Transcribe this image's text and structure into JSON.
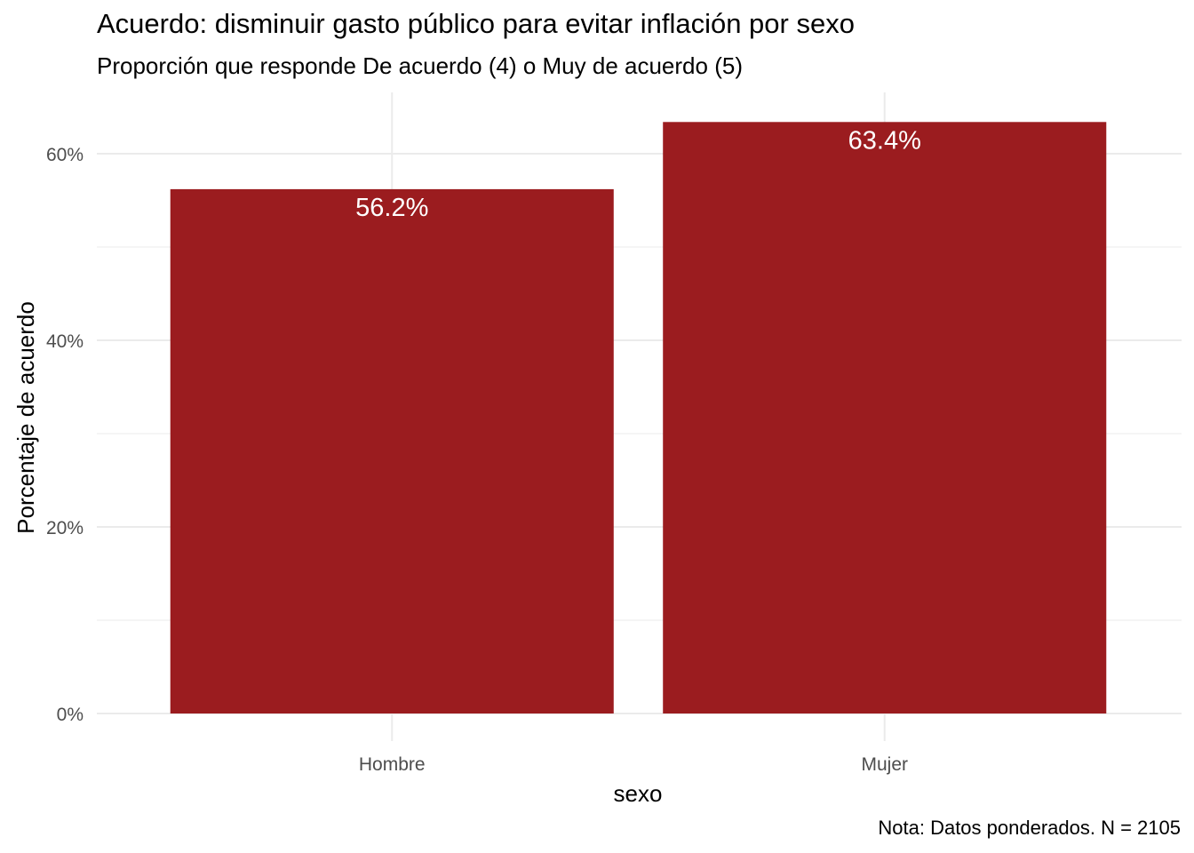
{
  "chart_data": {
    "type": "bar",
    "title": "Acuerdo: disminuir gasto público para evitar inflación por sexo",
    "subtitle": "Proporción que responde De acuerdo (4) o Muy de acuerdo (5)",
    "caption": "Nota: Datos ponderados. N = 2105",
    "xlabel": "sexo",
    "ylabel": "Porcentaje de acuerdo",
    "categories": [
      "Hombre",
      "Mujer"
    ],
    "values": [
      56.2,
      63.4
    ],
    "data_labels": [
      "56.2%",
      "63.4%"
    ],
    "yticks": [
      0,
      20,
      40,
      60
    ],
    "ytick_labels": [
      "0%",
      "20%",
      "40%",
      "60%"
    ],
    "ylim": [
      0,
      66.5
    ],
    "grid": true,
    "bar_color": "#9B1C1F",
    "label_color": "#ffffff",
    "grid_color": "#EBEBEB"
  }
}
